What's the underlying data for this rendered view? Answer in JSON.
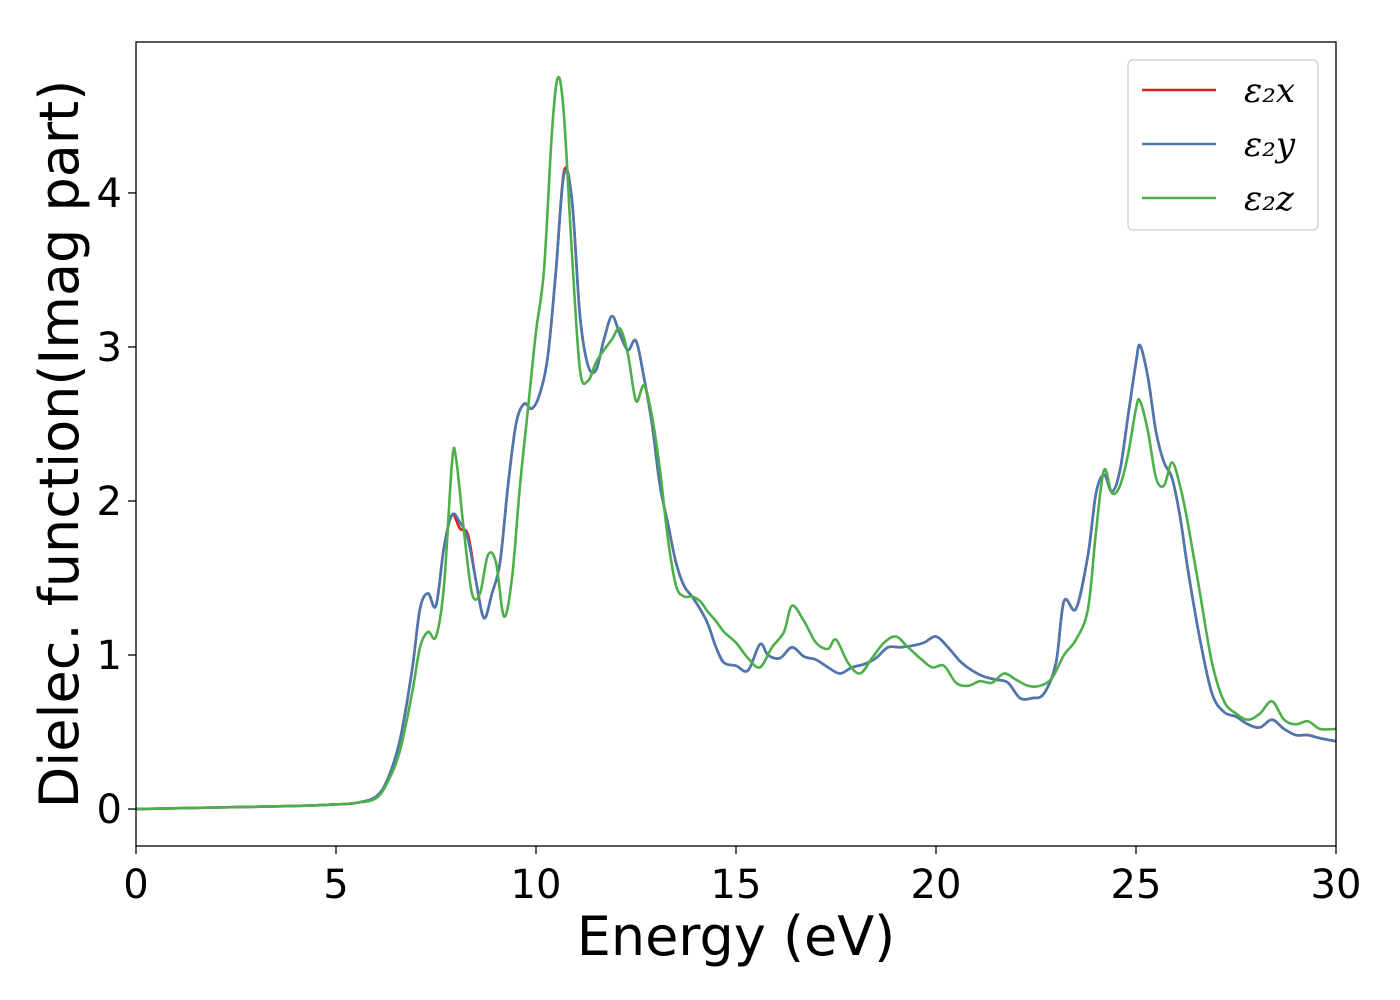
{
  "chart_data": {
    "type": "line",
    "title": "",
    "xlabel": "Energy (eV)",
    "ylabel": "Dielec. function(Imag part)",
    "xlim": [
      0,
      30
    ],
    "ylim": [
      -0.24,
      4.98
    ],
    "xticks": [
      0,
      5,
      10,
      15,
      20,
      25,
      30
    ],
    "yticks": [
      0,
      1,
      2,
      3,
      4
    ],
    "grid": false,
    "legend_position": "top-right",
    "series": [
      {
        "name": "ε₂x",
        "color": "#e41a1c",
        "x": [
          0,
          2,
          4,
          5,
          5.5,
          6,
          6.3,
          6.6,
          6.9,
          7.1,
          7.3,
          7.5,
          7.7,
          7.9,
          8.1,
          8.3,
          8.5,
          8.7,
          8.9,
          9.1,
          9.3,
          9.5,
          9.7,
          9.9,
          10.1,
          10.3,
          10.5,
          10.7,
          10.9,
          11.1,
          11.3,
          11.5,
          11.7,
          11.9,
          12.1,
          12.3,
          12.5,
          12.7,
          12.9,
          13.1,
          13.3,
          13.5,
          13.7,
          13.9,
          14.1,
          14.3,
          14.5,
          14.7,
          15,
          15.3,
          15.6,
          15.8,
          16.1,
          16.4,
          16.7,
          17,
          17.3,
          17.6,
          17.9,
          18.2,
          18.5,
          18.8,
          19.1,
          19.4,
          19.7,
          20,
          20.3,
          20.6,
          20.9,
          21.2,
          21.5,
          21.8,
          22.1,
          22.4,
          22.7,
          23,
          23.2,
          23.5,
          23.8,
          24,
          24.2,
          24.4,
          24.6,
          24.8,
          25,
          25.1,
          25.3,
          25.5,
          25.7,
          25.9,
          26.1,
          26.3,
          26.6,
          26.9,
          27.2,
          27.5,
          27.8,
          28.1,
          28.4,
          28.7,
          29,
          29.3,
          29.6,
          30
        ],
        "y": [
          0.0,
          0.01,
          0.02,
          0.03,
          0.04,
          0.08,
          0.2,
          0.45,
          0.9,
          1.3,
          1.4,
          1.32,
          1.7,
          1.91,
          1.82,
          1.78,
          1.48,
          1.24,
          1.4,
          1.6,
          2.1,
          2.5,
          2.63,
          2.6,
          2.7,
          2.95,
          3.5,
          4.14,
          3.95,
          3.2,
          2.88,
          2.85,
          3.05,
          3.2,
          3.08,
          2.98,
          3.04,
          2.8,
          2.5,
          2.1,
          1.85,
          1.6,
          1.45,
          1.38,
          1.3,
          1.2,
          1.05,
          0.95,
          0.93,
          0.9,
          1.07,
          1.0,
          0.98,
          1.05,
          0.99,
          0.97,
          0.92,
          0.88,
          0.92,
          0.94,
          0.98,
          1.05,
          1.05,
          1.06,
          1.08,
          1.12,
          1.05,
          0.96,
          0.9,
          0.86,
          0.84,
          0.82,
          0.72,
          0.72,
          0.75,
          0.95,
          1.35,
          1.3,
          1.65,
          2.05,
          2.17,
          2.06,
          2.2,
          2.55,
          2.9,
          3.01,
          2.8,
          2.45,
          2.25,
          2.15,
          1.9,
          1.55,
          1.1,
          0.75,
          0.63,
          0.6,
          0.55,
          0.53,
          0.58,
          0.52,
          0.48,
          0.48,
          0.46,
          0.44
        ]
      },
      {
        "name": "ε₂y",
        "color": "#4a78b0",
        "x": [
          0,
          2,
          4,
          5,
          5.5,
          6,
          6.3,
          6.6,
          6.9,
          7.1,
          7.3,
          7.5,
          7.7,
          7.9,
          8.1,
          8.3,
          8.5,
          8.7,
          8.9,
          9.1,
          9.3,
          9.5,
          9.7,
          9.9,
          10.1,
          10.3,
          10.5,
          10.7,
          10.9,
          11.1,
          11.3,
          11.5,
          11.7,
          11.9,
          12.1,
          12.3,
          12.5,
          12.7,
          12.9,
          13.1,
          13.3,
          13.5,
          13.7,
          13.9,
          14.1,
          14.3,
          14.5,
          14.7,
          15,
          15.3,
          15.6,
          15.8,
          16.1,
          16.4,
          16.7,
          17,
          17.3,
          17.6,
          17.9,
          18.2,
          18.5,
          18.8,
          19.1,
          19.4,
          19.7,
          20,
          20.3,
          20.6,
          20.9,
          21.2,
          21.5,
          21.8,
          22.1,
          22.4,
          22.7,
          23,
          23.2,
          23.5,
          23.8,
          24,
          24.2,
          24.4,
          24.6,
          24.8,
          25,
          25.1,
          25.3,
          25.5,
          25.7,
          25.9,
          26.1,
          26.3,
          26.6,
          26.9,
          27.2,
          27.5,
          27.8,
          28.1,
          28.4,
          28.7,
          29,
          29.3,
          29.6,
          30
        ],
        "y": [
          0.0,
          0.01,
          0.02,
          0.03,
          0.04,
          0.08,
          0.2,
          0.45,
          0.9,
          1.3,
          1.4,
          1.32,
          1.7,
          1.91,
          1.86,
          1.75,
          1.48,
          1.24,
          1.4,
          1.6,
          2.1,
          2.5,
          2.63,
          2.6,
          2.7,
          2.95,
          3.5,
          4.12,
          3.95,
          3.2,
          2.88,
          2.85,
          3.05,
          3.2,
          3.08,
          2.98,
          3.04,
          2.8,
          2.5,
          2.1,
          1.85,
          1.6,
          1.45,
          1.38,
          1.3,
          1.2,
          1.05,
          0.95,
          0.93,
          0.9,
          1.07,
          1.0,
          0.98,
          1.05,
          0.99,
          0.97,
          0.92,
          0.88,
          0.92,
          0.94,
          0.98,
          1.05,
          1.05,
          1.06,
          1.08,
          1.12,
          1.05,
          0.96,
          0.9,
          0.86,
          0.84,
          0.82,
          0.72,
          0.72,
          0.75,
          0.95,
          1.35,
          1.3,
          1.65,
          2.05,
          2.17,
          2.06,
          2.2,
          2.55,
          2.9,
          3.01,
          2.8,
          2.45,
          2.25,
          2.15,
          1.9,
          1.55,
          1.1,
          0.75,
          0.63,
          0.6,
          0.55,
          0.53,
          0.58,
          0.52,
          0.48,
          0.48,
          0.46,
          0.44
        ]
      },
      {
        "name": "ε₂z",
        "color": "#4daf4a",
        "x": [
          0,
          2,
          4,
          5,
          5.5,
          6,
          6.3,
          6.6,
          6.9,
          7.1,
          7.3,
          7.5,
          7.7,
          7.9,
          8.0,
          8.2,
          8.4,
          8.6,
          8.8,
          9.0,
          9.2,
          9.4,
          9.6,
          9.8,
          10.0,
          10.2,
          10.4,
          10.55,
          10.7,
          10.9,
          11.1,
          11.3,
          11.5,
          11.7,
          11.9,
          12.1,
          12.3,
          12.5,
          12.7,
          12.9,
          13.1,
          13.3,
          13.5,
          13.7,
          13.9,
          14.1,
          14.3,
          14.5,
          14.7,
          15,
          15.3,
          15.6,
          15.9,
          16.2,
          16.4,
          16.7,
          17,
          17.3,
          17.5,
          17.8,
          18.1,
          18.4,
          18.7,
          19,
          19.3,
          19.6,
          19.9,
          20.2,
          20.5,
          20.8,
          21.1,
          21.4,
          21.7,
          22,
          22.3,
          22.6,
          22.9,
          23.2,
          23.5,
          23.8,
          24,
          24.2,
          24.4,
          24.6,
          24.8,
          25,
          25.1,
          25.3,
          25.5,
          25.7,
          25.9,
          26.1,
          26.3,
          26.6,
          26.9,
          27.2,
          27.5,
          27.8,
          28.1,
          28.4,
          28.7,
          29,
          29.3,
          29.6,
          30
        ],
        "y": [
          0.0,
          0.01,
          0.02,
          0.03,
          0.04,
          0.07,
          0.18,
          0.38,
          0.75,
          1.05,
          1.15,
          1.12,
          1.45,
          2.25,
          2.28,
          1.8,
          1.4,
          1.4,
          1.65,
          1.6,
          1.25,
          1.5,
          2.1,
          2.6,
          3.1,
          3.5,
          4.4,
          4.75,
          4.5,
          3.6,
          2.85,
          2.78,
          2.9,
          2.98,
          3.05,
          3.12,
          2.95,
          2.65,
          2.75,
          2.55,
          2.2,
          1.75,
          1.45,
          1.38,
          1.38,
          1.35,
          1.28,
          1.22,
          1.15,
          1.08,
          0.98,
          0.92,
          1.05,
          1.15,
          1.32,
          1.22,
          1.08,
          1.04,
          1.1,
          0.95,
          0.88,
          0.98,
          1.08,
          1.12,
          1.05,
          0.98,
          0.92,
          0.93,
          0.82,
          0.8,
          0.83,
          0.82,
          0.88,
          0.84,
          0.8,
          0.8,
          0.85,
          1.0,
          1.1,
          1.3,
          1.8,
          2.2,
          2.05,
          2.1,
          2.3,
          2.6,
          2.65,
          2.45,
          2.15,
          2.1,
          2.25,
          2.1,
          1.85,
          1.4,
          0.95,
          0.7,
          0.62,
          0.58,
          0.62,
          0.7,
          0.58,
          0.55,
          0.57,
          0.52,
          0.52
        ]
      }
    ]
  }
}
